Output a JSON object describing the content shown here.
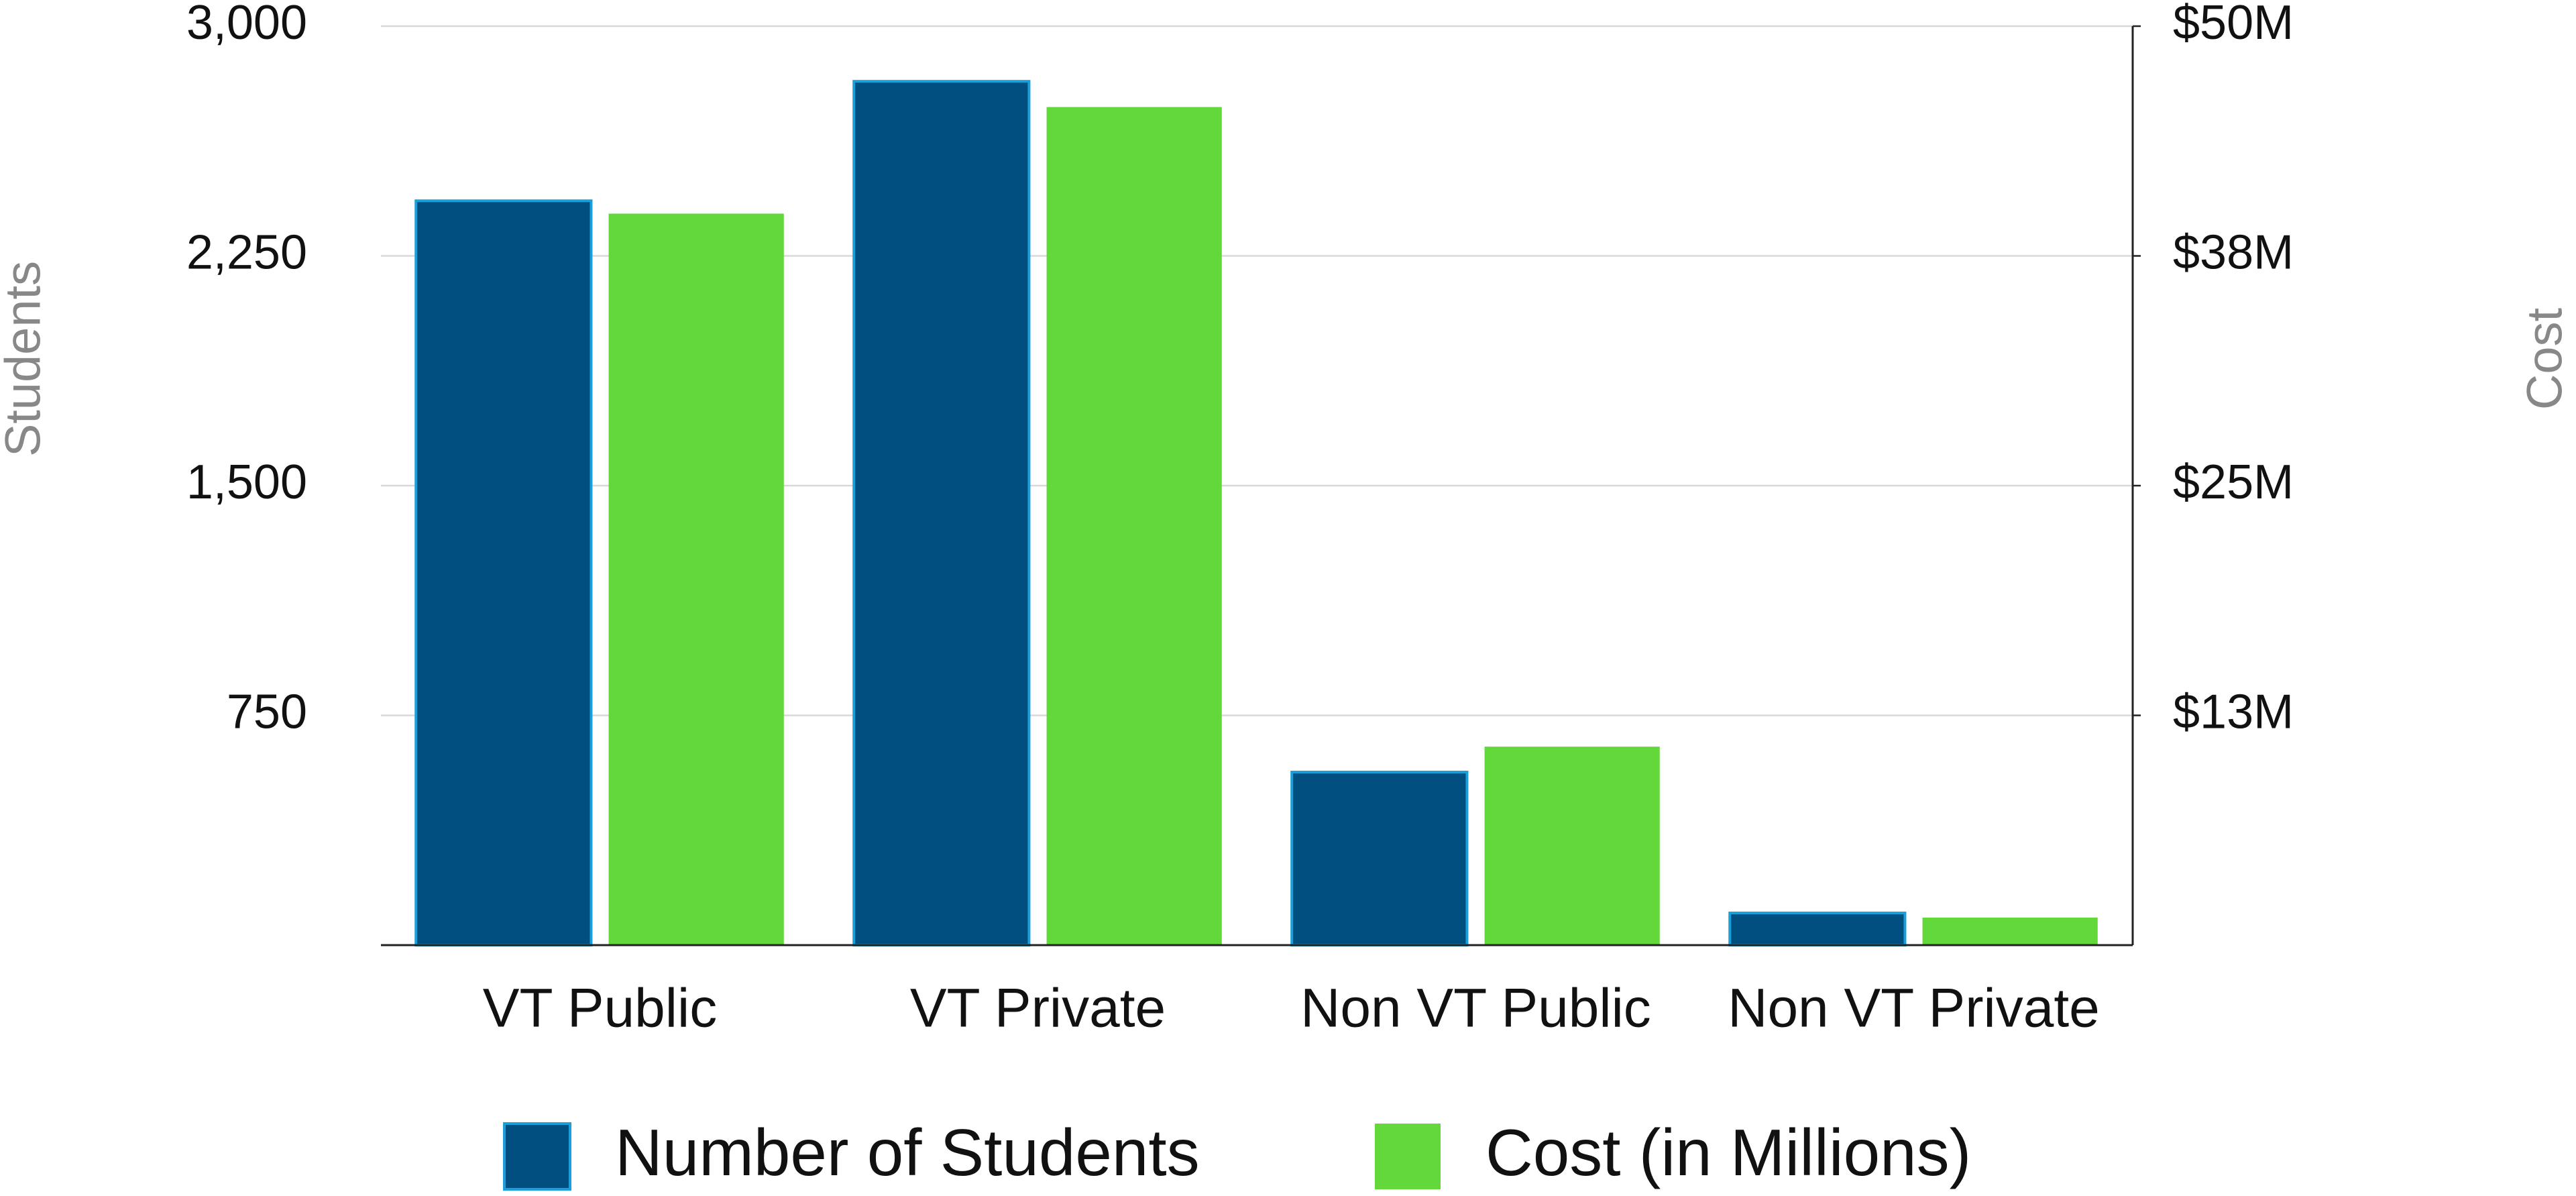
{
  "chart_data": {
    "type": "bar",
    "categories": [
      "VT Public",
      "VT Private",
      "Non VT Public",
      "Non VT Private"
    ],
    "series": [
      {
        "name": "Number of Students",
        "color": "#004f80",
        "values": [
          2430,
          2820,
          565,
          105
        ]
      },
      {
        "name": "Cost (in Millions)",
        "color": "#63d83a",
        "axis": "y2",
        "values": [
          39800000,
          45600000,
          10800000,
          1500000
        ]
      }
    ],
    "ylabel": "Students",
    "y2label": "Cost",
    "ylim": [
      0,
      3000
    ],
    "yticks": [
      750,
      {
        "value": 1500,
        "label": "1,500"
      },
      {
        "value": 2250,
        "label": "2,250"
      },
      {
        "value": 3000,
        "label": "3,000"
      }
    ],
    "y2lim": [
      0,
      50000000
    ],
    "y2ticks": [
      {
        "value": 12500000,
        "label": "$13M"
      },
      {
        "value": 25000000,
        "label": "$25M"
      },
      {
        "value": 37500000,
        "label": "$38M"
      },
      {
        "value": 50000000,
        "label": "$50M"
      }
    ],
    "grid": true,
    "legend": "bottom"
  }
}
